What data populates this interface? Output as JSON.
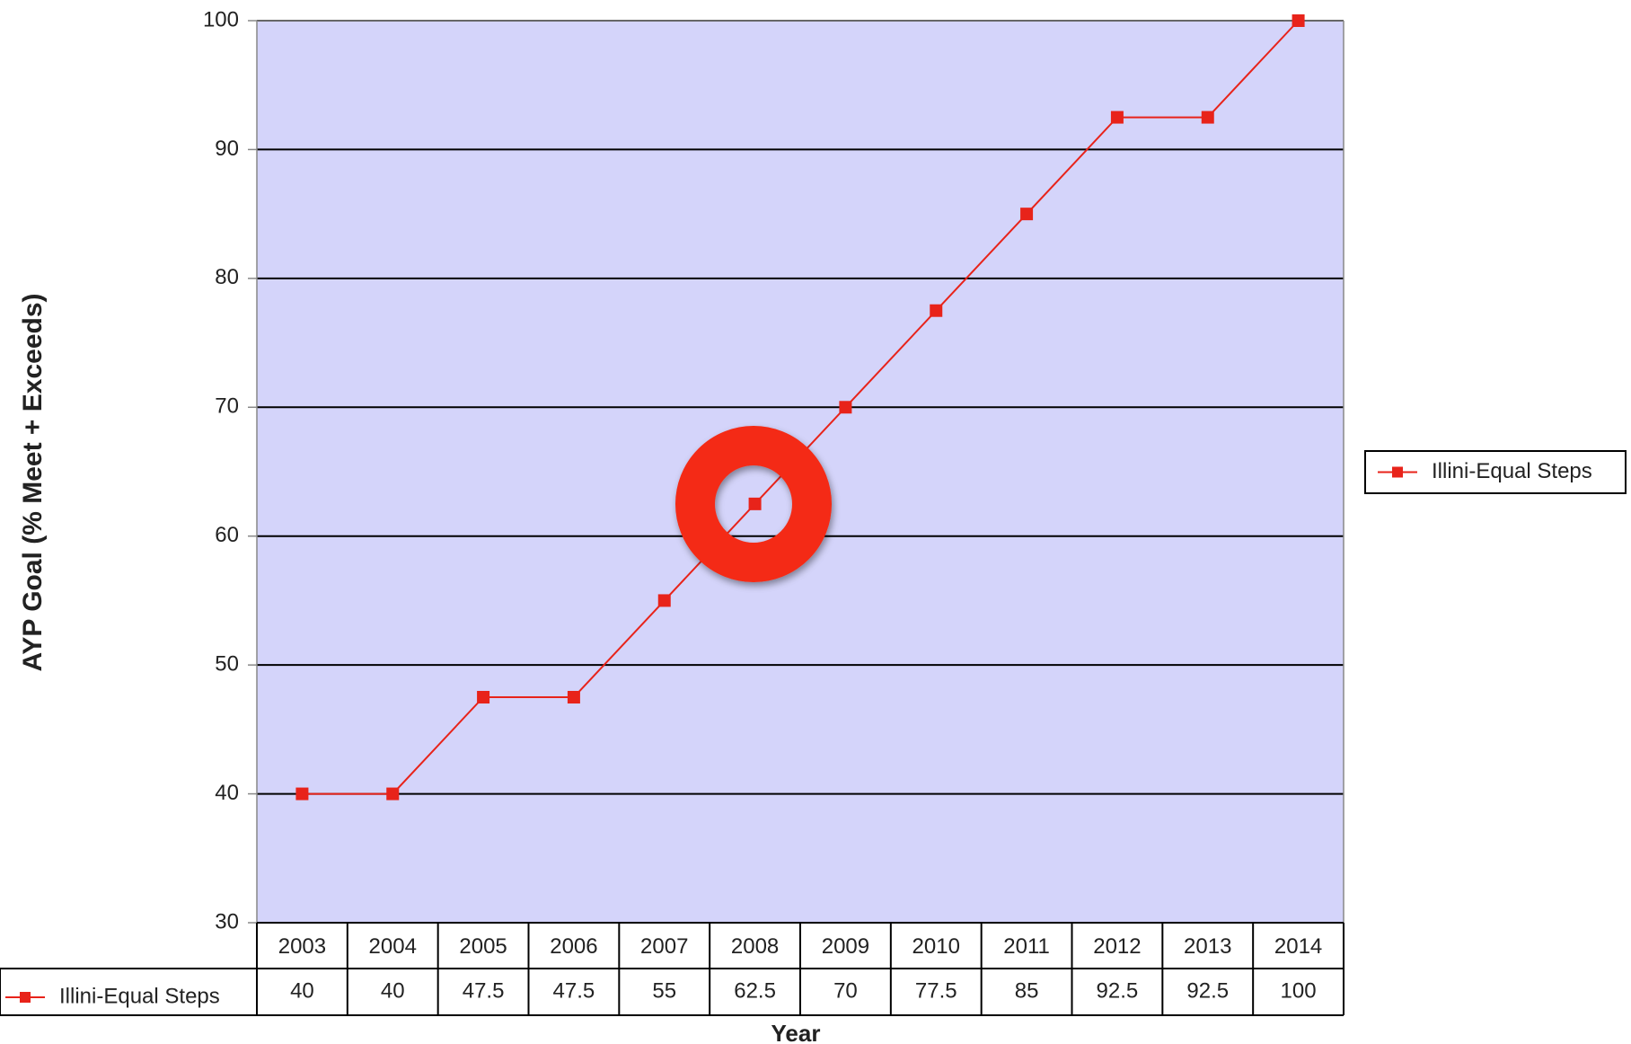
{
  "chart_data": {
    "type": "line",
    "y_label": "AYP Goal (% Meet + Exceeds)",
    "x_label": "Year",
    "categories": [
      "2003",
      "2004",
      "2005",
      "2006",
      "2007",
      "2008",
      "2009",
      "2010",
      "2011",
      "2012",
      "2013",
      "2014"
    ],
    "series": [
      {
        "name": "Illini-Equal Steps",
        "color": "#e8231a",
        "values": [
          40,
          40,
          47.5,
          47.5,
          55,
          62.5,
          70,
          77.5,
          85,
          92.5,
          92.5,
          100
        ]
      }
    ],
    "ylim": [
      30,
      100
    ],
    "yticks": [
      30,
      40,
      50,
      60,
      70,
      80,
      90,
      100
    ],
    "grid": true,
    "legend": "right",
    "data_table": true
  }
}
